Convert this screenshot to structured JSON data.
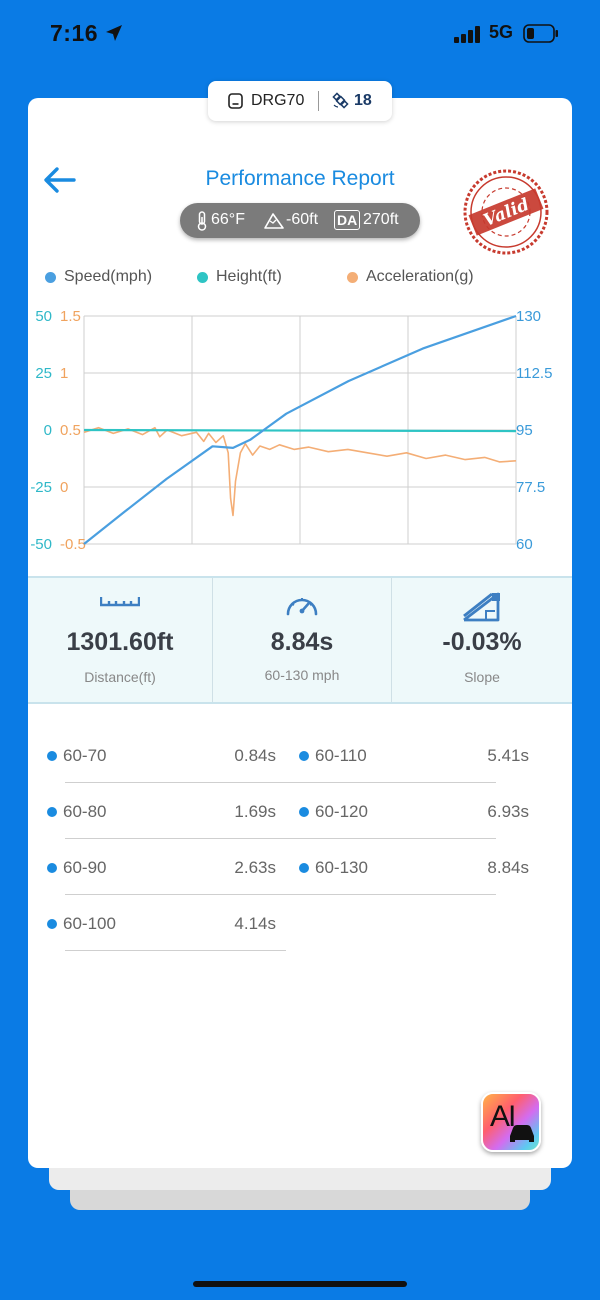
{
  "status_bar": {
    "time": "7:16",
    "network": "5G",
    "location_icon": "location-arrow-icon",
    "battery_level": 0.2
  },
  "device": {
    "name": "DRG70",
    "satellites": "18",
    "device_icon": "device-icon",
    "satellite_icon": "satellite-icon"
  },
  "header": {
    "title": "Performance Report",
    "back_icon": "back-arrow-icon",
    "stamp_text": "Valid"
  },
  "conditions": {
    "temperature": "66°F",
    "altitude": "-60ft",
    "density_altitude": "270ft",
    "da_badge": "DA"
  },
  "legend": [
    {
      "label": "Speed(mph)",
      "color": "#4a9fe0"
    },
    {
      "label": "Height(ft)",
      "color": "#2ec4c4"
    },
    {
      "label": "Acceleration(g)",
      "color": "#f4ae76"
    }
  ],
  "chart_data": {
    "type": "line",
    "x_range": [
      0,
      8.84
    ],
    "axes": {
      "height_ticks": [
        "50",
        "25",
        "0",
        "-25",
        "-50"
      ],
      "height_range": [
        -50,
        50
      ],
      "accel_ticks": [
        "1.5",
        "1",
        "0.5",
        "0",
        "-0.5"
      ],
      "accel_range": [
        -0.5,
        1.5
      ],
      "speed_ticks": [
        "130",
        "112.5",
        "95",
        "77.5",
        "60"
      ],
      "speed_range": [
        60,
        130
      ]
    },
    "grid": true,
    "series": [
      {
        "name": "Speed(mph)",
        "axis": "speed",
        "color": "#4a9fe0",
        "points": [
          [
            0,
            60
          ],
          [
            0.84,
            70
          ],
          [
            1.69,
            80
          ],
          [
            2.63,
            90
          ],
          [
            3.05,
            89.5
          ],
          [
            3.4,
            92
          ],
          [
            4.14,
            100
          ],
          [
            5.41,
            110
          ],
          [
            6.93,
            120
          ],
          [
            8.84,
            130
          ]
        ]
      },
      {
        "name": "Height(ft)",
        "axis": "height",
        "color": "#2ec4c4",
        "points": [
          [
            0,
            0
          ],
          [
            8.84,
            -0.5
          ]
        ]
      },
      {
        "name": "Acceleration(g)",
        "axis": "accel",
        "color": "#f4ae76",
        "points": [
          [
            0,
            0.48
          ],
          [
            0.3,
            0.52
          ],
          [
            0.6,
            0.47
          ],
          [
            0.9,
            0.51
          ],
          [
            1.2,
            0.46
          ],
          [
            1.45,
            0.52
          ],
          [
            1.55,
            0.44
          ],
          [
            1.7,
            0.5
          ],
          [
            2.0,
            0.45
          ],
          [
            2.3,
            0.48
          ],
          [
            2.45,
            0.4
          ],
          [
            2.55,
            0.47
          ],
          [
            2.7,
            0.39
          ],
          [
            2.85,
            0.45
          ],
          [
            2.95,
            0.3
          ],
          [
            3.0,
            -0.1
          ],
          [
            3.05,
            -0.25
          ],
          [
            3.1,
            0.05
          ],
          [
            3.2,
            0.3
          ],
          [
            3.3,
            0.38
          ],
          [
            3.45,
            0.28
          ],
          [
            3.6,
            0.36
          ],
          [
            3.8,
            0.33
          ],
          [
            4.0,
            0.37
          ],
          [
            4.3,
            0.33
          ],
          [
            4.6,
            0.35
          ],
          [
            5.0,
            0.31
          ],
          [
            5.4,
            0.33
          ],
          [
            5.8,
            0.3
          ],
          [
            6.2,
            0.27
          ],
          [
            6.6,
            0.3
          ],
          [
            7.0,
            0.25
          ],
          [
            7.4,
            0.28
          ],
          [
            7.8,
            0.24
          ],
          [
            8.2,
            0.26
          ],
          [
            8.5,
            0.22
          ],
          [
            8.84,
            0.23
          ]
        ]
      }
    ]
  },
  "stats": [
    {
      "value": "1301.60ft",
      "label": "Distance(ft)",
      "icon": "ruler-icon"
    },
    {
      "value": "8.84s",
      "label": "60-130 mph",
      "icon": "speedometer-icon"
    },
    {
      "value": "-0.03%",
      "label": "Slope",
      "icon": "slope-icon"
    }
  ],
  "splits": [
    {
      "range": "60-70",
      "time": "0.84s"
    },
    {
      "range": "60-80",
      "time": "1.69s"
    },
    {
      "range": "60-90",
      "time": "2.63s"
    },
    {
      "range": "60-100",
      "time": "4.14s"
    },
    {
      "range": "60-110",
      "time": "5.41s"
    },
    {
      "range": "60-120",
      "time": "6.93s"
    },
    {
      "range": "60-130",
      "time": "8.84s"
    }
  ],
  "ai_button": {
    "label": "AI",
    "icon": "ai-car-icon"
  }
}
